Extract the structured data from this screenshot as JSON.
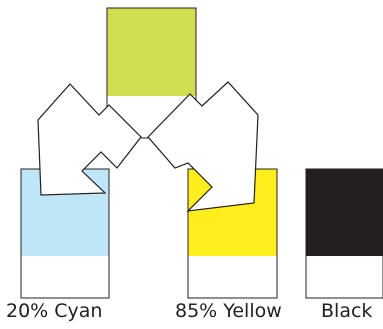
{
  "labels": {
    "cyan": "20% Cyan",
    "yellow": "85% Yellow",
    "black": "Black"
  },
  "colors": {
    "source_green": "#d1de4f",
    "cyan_tint": "#bfe6f7",
    "yellow": "#ffee1e",
    "black": "#231f20",
    "outline": "#231f20",
    "arrow_fill": "#ffffff"
  },
  "icons": {
    "left_arrow": "arrow-down-left-icon",
    "right_arrow": "arrow-down-right-icon"
  }
}
